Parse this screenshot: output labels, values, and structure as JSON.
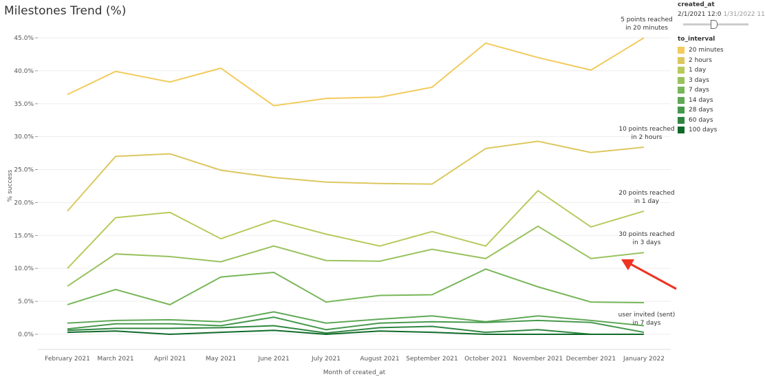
{
  "title": "Milestones Trend (%)",
  "filter": {
    "label": "created_at",
    "start": "2/1/2021 12:0",
    "end": "1/31/2022 11"
  },
  "legend": {
    "title": "to_interval",
    "items": [
      {
        "label": "20 minutes",
        "color": "#f2cb5c"
      },
      {
        "label": "2 hours",
        "color": "#dcc75e"
      },
      {
        "label": "1 day",
        "color": "#b9c95c"
      },
      {
        "label": "3 days",
        "color": "#98c25d"
      },
      {
        "label": "7 days",
        "color": "#78b658"
      },
      {
        "label": "14 days",
        "color": "#5ea856"
      },
      {
        "label": "28 days",
        "color": "#46984c"
      },
      {
        "label": "60 days",
        "color": "#2e8640"
      },
      {
        "label": "100 days",
        "color": "#0f6a2a"
      }
    ]
  },
  "chart_data": {
    "type": "line",
    "xlabel": "Month of created_at",
    "ylabel": "% success",
    "ylim": [
      0,
      45
    ],
    "yticks": [
      "0.0%",
      "5.0%",
      "10.0%",
      "15.0%",
      "20.0%",
      "25.0%",
      "30.0%",
      "35.0%",
      "40.0%",
      "45.0%"
    ],
    "categories": [
      "February 2021",
      "March 2021",
      "April 2021",
      "May 2021",
      "June 2021",
      "July 2021",
      "August 2021",
      "September 2021",
      "October 2021",
      "November 2021",
      "December 2021",
      "January 2022"
    ],
    "grid": true,
    "legend": "right",
    "series": [
      {
        "name": "20 minutes",
        "values": [
          36.4,
          39.9,
          38.3,
          40.4,
          34.7,
          35.8,
          36.0,
          37.5,
          44.2,
          42.0,
          40.1,
          45.0
        ]
      },
      {
        "name": "2 hours",
        "values": [
          18.7,
          27.0,
          27.4,
          24.9,
          23.8,
          23.1,
          22.9,
          22.8,
          28.2,
          29.3,
          27.6,
          28.4
        ]
      },
      {
        "name": "1 day",
        "values": [
          10.0,
          17.7,
          18.5,
          14.5,
          17.3,
          15.2,
          13.4,
          15.6,
          13.4,
          21.8,
          16.3,
          18.7
        ]
      },
      {
        "name": "3 days",
        "values": [
          7.3,
          12.2,
          11.8,
          11.0,
          13.4,
          11.2,
          11.1,
          12.9,
          11.5,
          16.4,
          11.5,
          12.4
        ]
      },
      {
        "name": "7 days",
        "values": [
          4.5,
          6.8,
          4.5,
          8.7,
          9.4,
          4.9,
          5.9,
          6.0,
          9.9,
          7.2,
          4.9,
          4.8
        ]
      },
      {
        "name": "14 days",
        "values": [
          1.7,
          2.1,
          2.2,
          1.9,
          3.4,
          1.7,
          2.3,
          2.8,
          1.9,
          2.8,
          2.1,
          1.3
        ]
      },
      {
        "name": "28 days",
        "values": [
          0.8,
          1.6,
          1.6,
          1.3,
          2.6,
          0.7,
          1.7,
          1.9,
          1.8,
          2.1,
          1.8,
          0.3
        ]
      },
      {
        "name": "60 days",
        "values": [
          0.6,
          0.9,
          0.9,
          1.0,
          1.3,
          0.2,
          1.0,
          1.2,
          0.3,
          0.7,
          0.0,
          0.0
        ]
      },
      {
        "name": "100 days",
        "values": [
          0.3,
          0.5,
          0.0,
          0.3,
          0.6,
          0.0,
          0.5,
          0.3,
          0.0,
          0.0,
          0.0,
          0.0
        ]
      }
    ],
    "annotations": [
      {
        "lines": [
          "5 points reached",
          "in 20 minutes"
        ],
        "series": "20 minutes"
      },
      {
        "lines": [
          "10 points reached",
          "in 2 hours"
        ],
        "series": "2 hours"
      },
      {
        "lines": [
          "20 points reached",
          "in 1 day"
        ],
        "series": "1 day"
      },
      {
        "lines": [
          "30 points reached",
          "in 3 days"
        ],
        "series": "3 days"
      },
      {
        "lines": [
          "user invited (sent)",
          "in 7 days"
        ],
        "series": "7 days"
      }
    ],
    "arrow_color": "#ee3322"
  }
}
